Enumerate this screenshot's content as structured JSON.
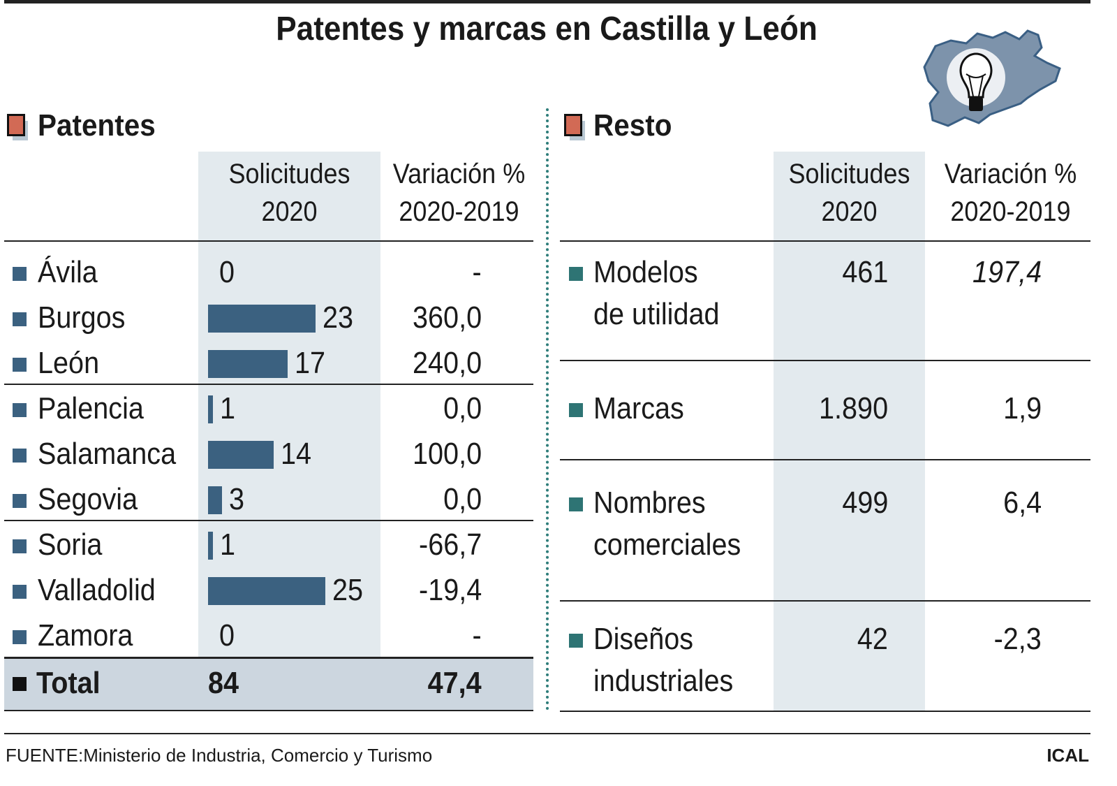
{
  "title": "Patentes y marcas en Castilla y León",
  "colors": {
    "bar": "#3b6180",
    "left_bullet": "#3b6180",
    "right_bullet": "#2e7474",
    "shade": "#e3eaee",
    "total_shade": "#ccd6df",
    "section_icon": "#d26a55"
  },
  "chart_data": [
    {
      "type": "bar",
      "title": "Patentes",
      "columns": [
        "Solicitudes 2020",
        "Variación % 2020-2019"
      ],
      "categories": [
        "Ávila",
        "Burgos",
        "León",
        "Palencia",
        "Salamanca",
        "Segovia",
        "Soria",
        "Valladolid",
        "Zamora"
      ],
      "values": [
        0,
        23,
        17,
        1,
        14,
        3,
        1,
        25,
        0
      ],
      "value_labels": [
        "0",
        "23",
        "17",
        "1",
        "14",
        "3",
        "1",
        "25",
        "0"
      ],
      "variation": [
        "-",
        "360,0",
        "240,0",
        "0,0",
        "100,0",
        "0,0",
        "-66,7",
        "-19,4",
        "-"
      ],
      "total": {
        "label": "Total",
        "value": "84",
        "variation": "47,4"
      }
    },
    {
      "type": "table",
      "title": "Resto",
      "columns": [
        "Solicitudes 2020",
        "Variación % 2020-2019"
      ],
      "rows": [
        {
          "label": [
            "Modelos",
            "de utilidad"
          ],
          "value": "461",
          "variation": "197,4"
        },
        {
          "label": [
            "Marcas"
          ],
          "value": "1.890",
          "variation": "1,9"
        },
        {
          "label": [
            "Nombres",
            "comerciales"
          ],
          "value": "499",
          "variation": "6,4"
        },
        {
          "label": [
            "Diseños",
            "industriales"
          ],
          "value": "42",
          "variation": "-2,3"
        }
      ]
    }
  ],
  "header": {
    "col1_line1": "Solicitudes",
    "col1_line2": "2020",
    "col2_line1": "Variación %",
    "col2_line2": "2020-2019"
  },
  "footer": {
    "source": "FUENTE:Ministerio de Industria, Comercio y Turismo",
    "credit": "ICAL"
  },
  "logo": {
    "icon": "lightbulb-map-icon"
  }
}
